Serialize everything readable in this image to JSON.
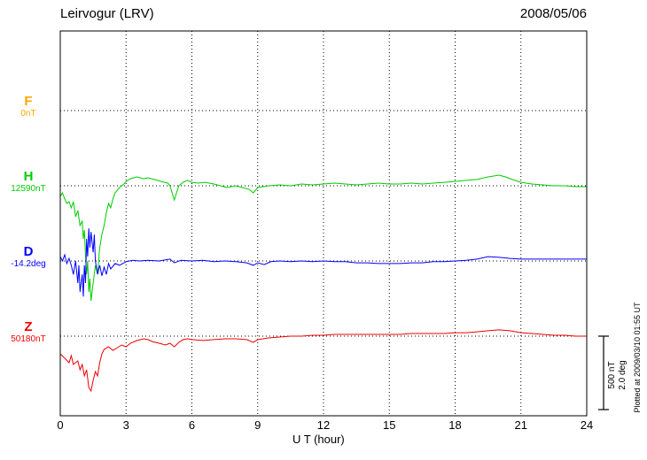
{
  "header": {
    "station": "Leirvogur (LRV)",
    "date": "2008/05/06"
  },
  "axis": {
    "x_label": "U T (hour)"
  },
  "series_labels": [
    {
      "letter": "F",
      "value": "0nT"
    },
    {
      "letter": "H",
      "value": "12590nT"
    },
    {
      "letter": "D",
      "value": "-14.2deg"
    },
    {
      "letter": "Z",
      "value": "50180nT"
    }
  ],
  "scale_bar": {
    "nt": "500 nT",
    "deg": "2.0 deg"
  },
  "footer_note": "Plotted at 2009/03/10 01:55 UT",
  "chart_data": {
    "type": "line",
    "title": "Leirvogur (LRV) magnetogram 2008/05/06",
    "xlabel": "U T (hour)",
    "x_range": [
      0,
      24
    ],
    "x_ticks": [
      0,
      3,
      6,
      9,
      12,
      15,
      18,
      21,
      24
    ],
    "grid": "dotted",
    "scale": {
      "nT_per_div": 500,
      "deg_per_div": 2.0
    },
    "series": [
      {
        "name": "F",
        "unit": "nT",
        "baseline_label": "0nT",
        "baseline_value": 0,
        "color": "#FFA500",
        "points": []
      },
      {
        "name": "H",
        "unit": "nT",
        "baseline_label": "12590nT",
        "baseline_value": 12590,
        "color": "#00CC00",
        "points": [
          [
            0,
            -73
          ],
          [
            0.1,
            -49
          ],
          [
            0.2,
            -91
          ],
          [
            0.3,
            -122
          ],
          [
            0.4,
            -110
          ],
          [
            0.5,
            -152
          ],
          [
            0.6,
            -110
          ],
          [
            0.7,
            -213
          ],
          [
            0.8,
            -171
          ],
          [
            0.9,
            -274
          ],
          [
            1,
            -244
          ],
          [
            1.05,
            -366
          ],
          [
            1.1,
            -305
          ],
          [
            1.15,
            -488
          ],
          [
            1.2,
            -610
          ],
          [
            1.25,
            -518
          ],
          [
            1.3,
            -732
          ],
          [
            1.35,
            -640
          ],
          [
            1.4,
            -793
          ],
          [
            1.5,
            -671
          ],
          [
            1.6,
            -549
          ],
          [
            1.7,
            -610
          ],
          [
            1.8,
            -427
          ],
          [
            1.9,
            -335
          ],
          [
            2,
            -274
          ],
          [
            2.1,
            -183
          ],
          [
            2.2,
            -122
          ],
          [
            2.3,
            -152
          ],
          [
            2.4,
            -91
          ],
          [
            2.5,
            -49
          ],
          [
            2.7,
            -12
          ],
          [
            2.9,
            12
          ],
          [
            3,
            30
          ],
          [
            3.2,
            49
          ],
          [
            3.5,
            61
          ],
          [
            3.8,
            49
          ],
          [
            4,
            55
          ],
          [
            4.3,
            43
          ],
          [
            4.6,
            30
          ],
          [
            4.9,
            18
          ],
          [
            5,
            0
          ],
          [
            5.1,
            -49
          ],
          [
            5.2,
            -98
          ],
          [
            5.3,
            -49
          ],
          [
            5.4,
            0
          ],
          [
            5.6,
            24
          ],
          [
            5.8,
            37
          ],
          [
            6,
            24
          ],
          [
            6.3,
            18
          ],
          [
            6.6,
            24
          ],
          [
            7,
            12
          ],
          [
            7.3,
            0
          ],
          [
            7.6,
            -12
          ],
          [
            8,
            0
          ],
          [
            8.3,
            -12
          ],
          [
            8.6,
            -24
          ],
          [
            8.8,
            -49
          ],
          [
            9,
            -12
          ],
          [
            9.5,
            0
          ],
          [
            10,
            6
          ],
          [
            10.5,
            0
          ],
          [
            11,
            12
          ],
          [
            11.5,
            6
          ],
          [
            12,
            12
          ],
          [
            12.5,
            18
          ],
          [
            13,
            12
          ],
          [
            13.5,
            6
          ],
          [
            14,
            12
          ],
          [
            14.5,
            18
          ],
          [
            15,
            12
          ],
          [
            15.5,
            12
          ],
          [
            16,
            18
          ],
          [
            16.5,
            12
          ],
          [
            17,
            18
          ],
          [
            17.5,
            24
          ],
          [
            18,
            30
          ],
          [
            18.5,
            37
          ],
          [
            19,
            43
          ],
          [
            19.5,
            61
          ],
          [
            20,
            73
          ],
          [
            20.3,
            61
          ],
          [
            20.6,
            43
          ],
          [
            21,
            24
          ],
          [
            21.5,
            12
          ],
          [
            22,
            6
          ],
          [
            22.5,
            0
          ],
          [
            23,
            0
          ],
          [
            23.5,
            -6
          ],
          [
            24,
            -6
          ]
        ]
      },
      {
        "name": "D",
        "unit": "deg",
        "baseline_label": "-14.2deg",
        "baseline_value": -14.2,
        "color": "#0000FF",
        "points": [
          [
            0,
            0.12
          ],
          [
            0.1,
            0
          ],
          [
            0.2,
            0.17
          ],
          [
            0.3,
            -0.07
          ],
          [
            0.4,
            0.07
          ],
          [
            0.5,
            -0.12
          ],
          [
            0.6,
            -0.37
          ],
          [
            0.7,
            0
          ],
          [
            0.8,
            -0.61
          ],
          [
            0.85,
            -0.12
          ],
          [
            0.9,
            -0.85
          ],
          [
            1,
            -0.37
          ],
          [
            1.05,
            -0.98
          ],
          [
            1.1,
            -0.12
          ],
          [
            1.15,
            -0.61
          ],
          [
            1.2,
            0.61
          ],
          [
            1.25,
            0.12
          ],
          [
            1.3,
            0.9
          ],
          [
            1.35,
            0.37
          ],
          [
            1.4,
            0.8
          ],
          [
            1.5,
            0.24
          ],
          [
            1.55,
            0.73
          ],
          [
            1.6,
            0
          ],
          [
            1.7,
            -0.37
          ],
          [
            1.8,
            -0.12
          ],
          [
            1.9,
            -0.41
          ],
          [
            2,
            -0.17
          ],
          [
            2.1,
            -0.37
          ],
          [
            2.2,
            -0.07
          ],
          [
            2.3,
            -0.22
          ],
          [
            2.5,
            -0.07
          ],
          [
            2.7,
            -0.12
          ],
          [
            3,
            -0.02
          ],
          [
            3.3,
            0.02
          ],
          [
            3.6,
            0
          ],
          [
            4,
            0.02
          ],
          [
            4.5,
            0
          ],
          [
            5,
            0.05
          ],
          [
            5.2,
            -0.05
          ],
          [
            5.5,
            0.02
          ],
          [
            6,
            0
          ],
          [
            6.5,
            0.02
          ],
          [
            7,
            -0.02
          ],
          [
            7.5,
            0
          ],
          [
            8,
            -0.02
          ],
          [
            8.5,
            -0.05
          ],
          [
            8.8,
            -0.12
          ],
          [
            9,
            -0.05
          ],
          [
            9.3,
            -0.1
          ],
          [
            9.6,
            -0.02
          ],
          [
            10,
            0
          ],
          [
            10.5,
            -0.02
          ],
          [
            11,
            0
          ],
          [
            11.5,
            -0.02
          ],
          [
            12,
            0
          ],
          [
            12.5,
            -0.02
          ],
          [
            13,
            -0.02
          ],
          [
            13.5,
            -0.05
          ],
          [
            14,
            -0.05
          ],
          [
            14.5,
            -0.07
          ],
          [
            15,
            -0.07
          ],
          [
            15.5,
            -0.07
          ],
          [
            16,
            -0.05
          ],
          [
            16.5,
            -0.05
          ],
          [
            17,
            -0.02
          ],
          [
            17.5,
            -0.02
          ],
          [
            18,
            0
          ],
          [
            18.5,
            0.02
          ],
          [
            19,
            0.05
          ],
          [
            19.5,
            0.12
          ],
          [
            20,
            0.1
          ],
          [
            20.5,
            0.07
          ],
          [
            21,
            0.05
          ],
          [
            21.5,
            0.05
          ],
          [
            22,
            0.05
          ],
          [
            22.5,
            0.05
          ],
          [
            23,
            0.05
          ],
          [
            24,
            0.05
          ]
        ]
      },
      {
        "name": "Z",
        "unit": "nT",
        "baseline_label": "50180nT",
        "baseline_value": 50180,
        "color": "#EE0000",
        "points": [
          [
            0,
            -122
          ],
          [
            0.2,
            -152
          ],
          [
            0.4,
            -183
          ],
          [
            0.5,
            -134
          ],
          [
            0.6,
            -195
          ],
          [
            0.8,
            -171
          ],
          [
            0.9,
            -232
          ],
          [
            1,
            -195
          ],
          [
            1.1,
            -274
          ],
          [
            1.2,
            -232
          ],
          [
            1.3,
            -354
          ],
          [
            1.4,
            -378
          ],
          [
            1.5,
            -305
          ],
          [
            1.6,
            -244
          ],
          [
            1.7,
            -274
          ],
          [
            1.8,
            -183
          ],
          [
            1.9,
            -122
          ],
          [
            2,
            -91
          ],
          [
            2.2,
            -73
          ],
          [
            2.4,
            -98
          ],
          [
            2.6,
            -79
          ],
          [
            2.8,
            -61
          ],
          [
            3,
            -73
          ],
          [
            3.2,
            -49
          ],
          [
            3.5,
            -30
          ],
          [
            3.8,
            -18
          ],
          [
            4,
            -24
          ],
          [
            4.2,
            -37
          ],
          [
            4.5,
            -49
          ],
          [
            4.8,
            -61
          ],
          [
            5,
            -49
          ],
          [
            5.2,
            -73
          ],
          [
            5.4,
            -43
          ],
          [
            5.6,
            -24
          ],
          [
            5.8,
            -18
          ],
          [
            6,
            -24
          ],
          [
            6.5,
            -30
          ],
          [
            7,
            -24
          ],
          [
            7.5,
            -18
          ],
          [
            8,
            -18
          ],
          [
            8.5,
            -24
          ],
          [
            8.8,
            -43
          ],
          [
            9,
            -24
          ],
          [
            9.5,
            -12
          ],
          [
            10,
            -6
          ],
          [
            10.5,
            0
          ],
          [
            11,
            0
          ],
          [
            11.5,
            6
          ],
          [
            12,
            6
          ],
          [
            12.5,
            12
          ],
          [
            13,
            12
          ],
          [
            13.5,
            12
          ],
          [
            14,
            12
          ],
          [
            14.5,
            12
          ],
          [
            15,
            12
          ],
          [
            15.5,
            12
          ],
          [
            16,
            18
          ],
          [
            16.5,
            18
          ],
          [
            17,
            18
          ],
          [
            17.5,
            18
          ],
          [
            18,
            24
          ],
          [
            18.5,
            24
          ],
          [
            19,
            30
          ],
          [
            19.5,
            37
          ],
          [
            20,
            43
          ],
          [
            20.5,
            37
          ],
          [
            21,
            24
          ],
          [
            21.5,
            18
          ],
          [
            22,
            12
          ],
          [
            22.5,
            6
          ],
          [
            23,
            6
          ],
          [
            23.5,
            0
          ],
          [
            24,
            0
          ]
        ]
      }
    ]
  }
}
